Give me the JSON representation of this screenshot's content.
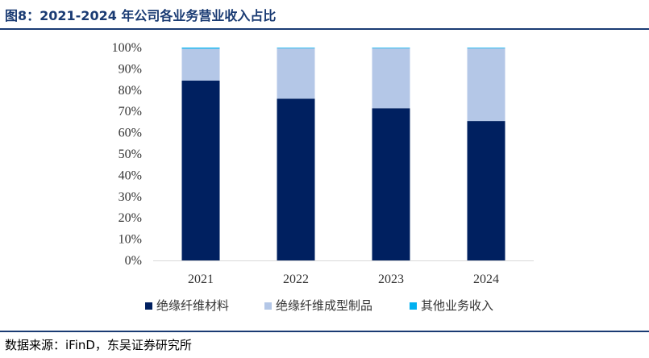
{
  "header": {
    "title": "图8：2021-2024 年公司各业务营业收入占比"
  },
  "footer": {
    "source": "数据来源：iFinD，东吴证券研究所"
  },
  "chart_data": {
    "type": "bar",
    "stacked": true,
    "categories": [
      "2021",
      "2022",
      "2023",
      "2024"
    ],
    "series": [
      {
        "name": "绝缘纤维材料",
        "color": "#002060",
        "values": [
          84.5,
          76,
          71.5,
          65.5
        ]
      },
      {
        "name": "绝缘纤维成型制品",
        "color": "#b4c7e7",
        "values": [
          15,
          23.7,
          28.2,
          34.2
        ]
      },
      {
        "name": "其他业务收入",
        "color": "#00b0f0",
        "values": [
          0.5,
          0.3,
          0.3,
          0.3
        ]
      }
    ],
    "yticks": [
      "0%",
      "10%",
      "20%",
      "30%",
      "40%",
      "50%",
      "60%",
      "70%",
      "80%",
      "90%",
      "100%"
    ],
    "ylim": [
      0,
      100
    ],
    "grid": false,
    "legend": "bottom"
  }
}
